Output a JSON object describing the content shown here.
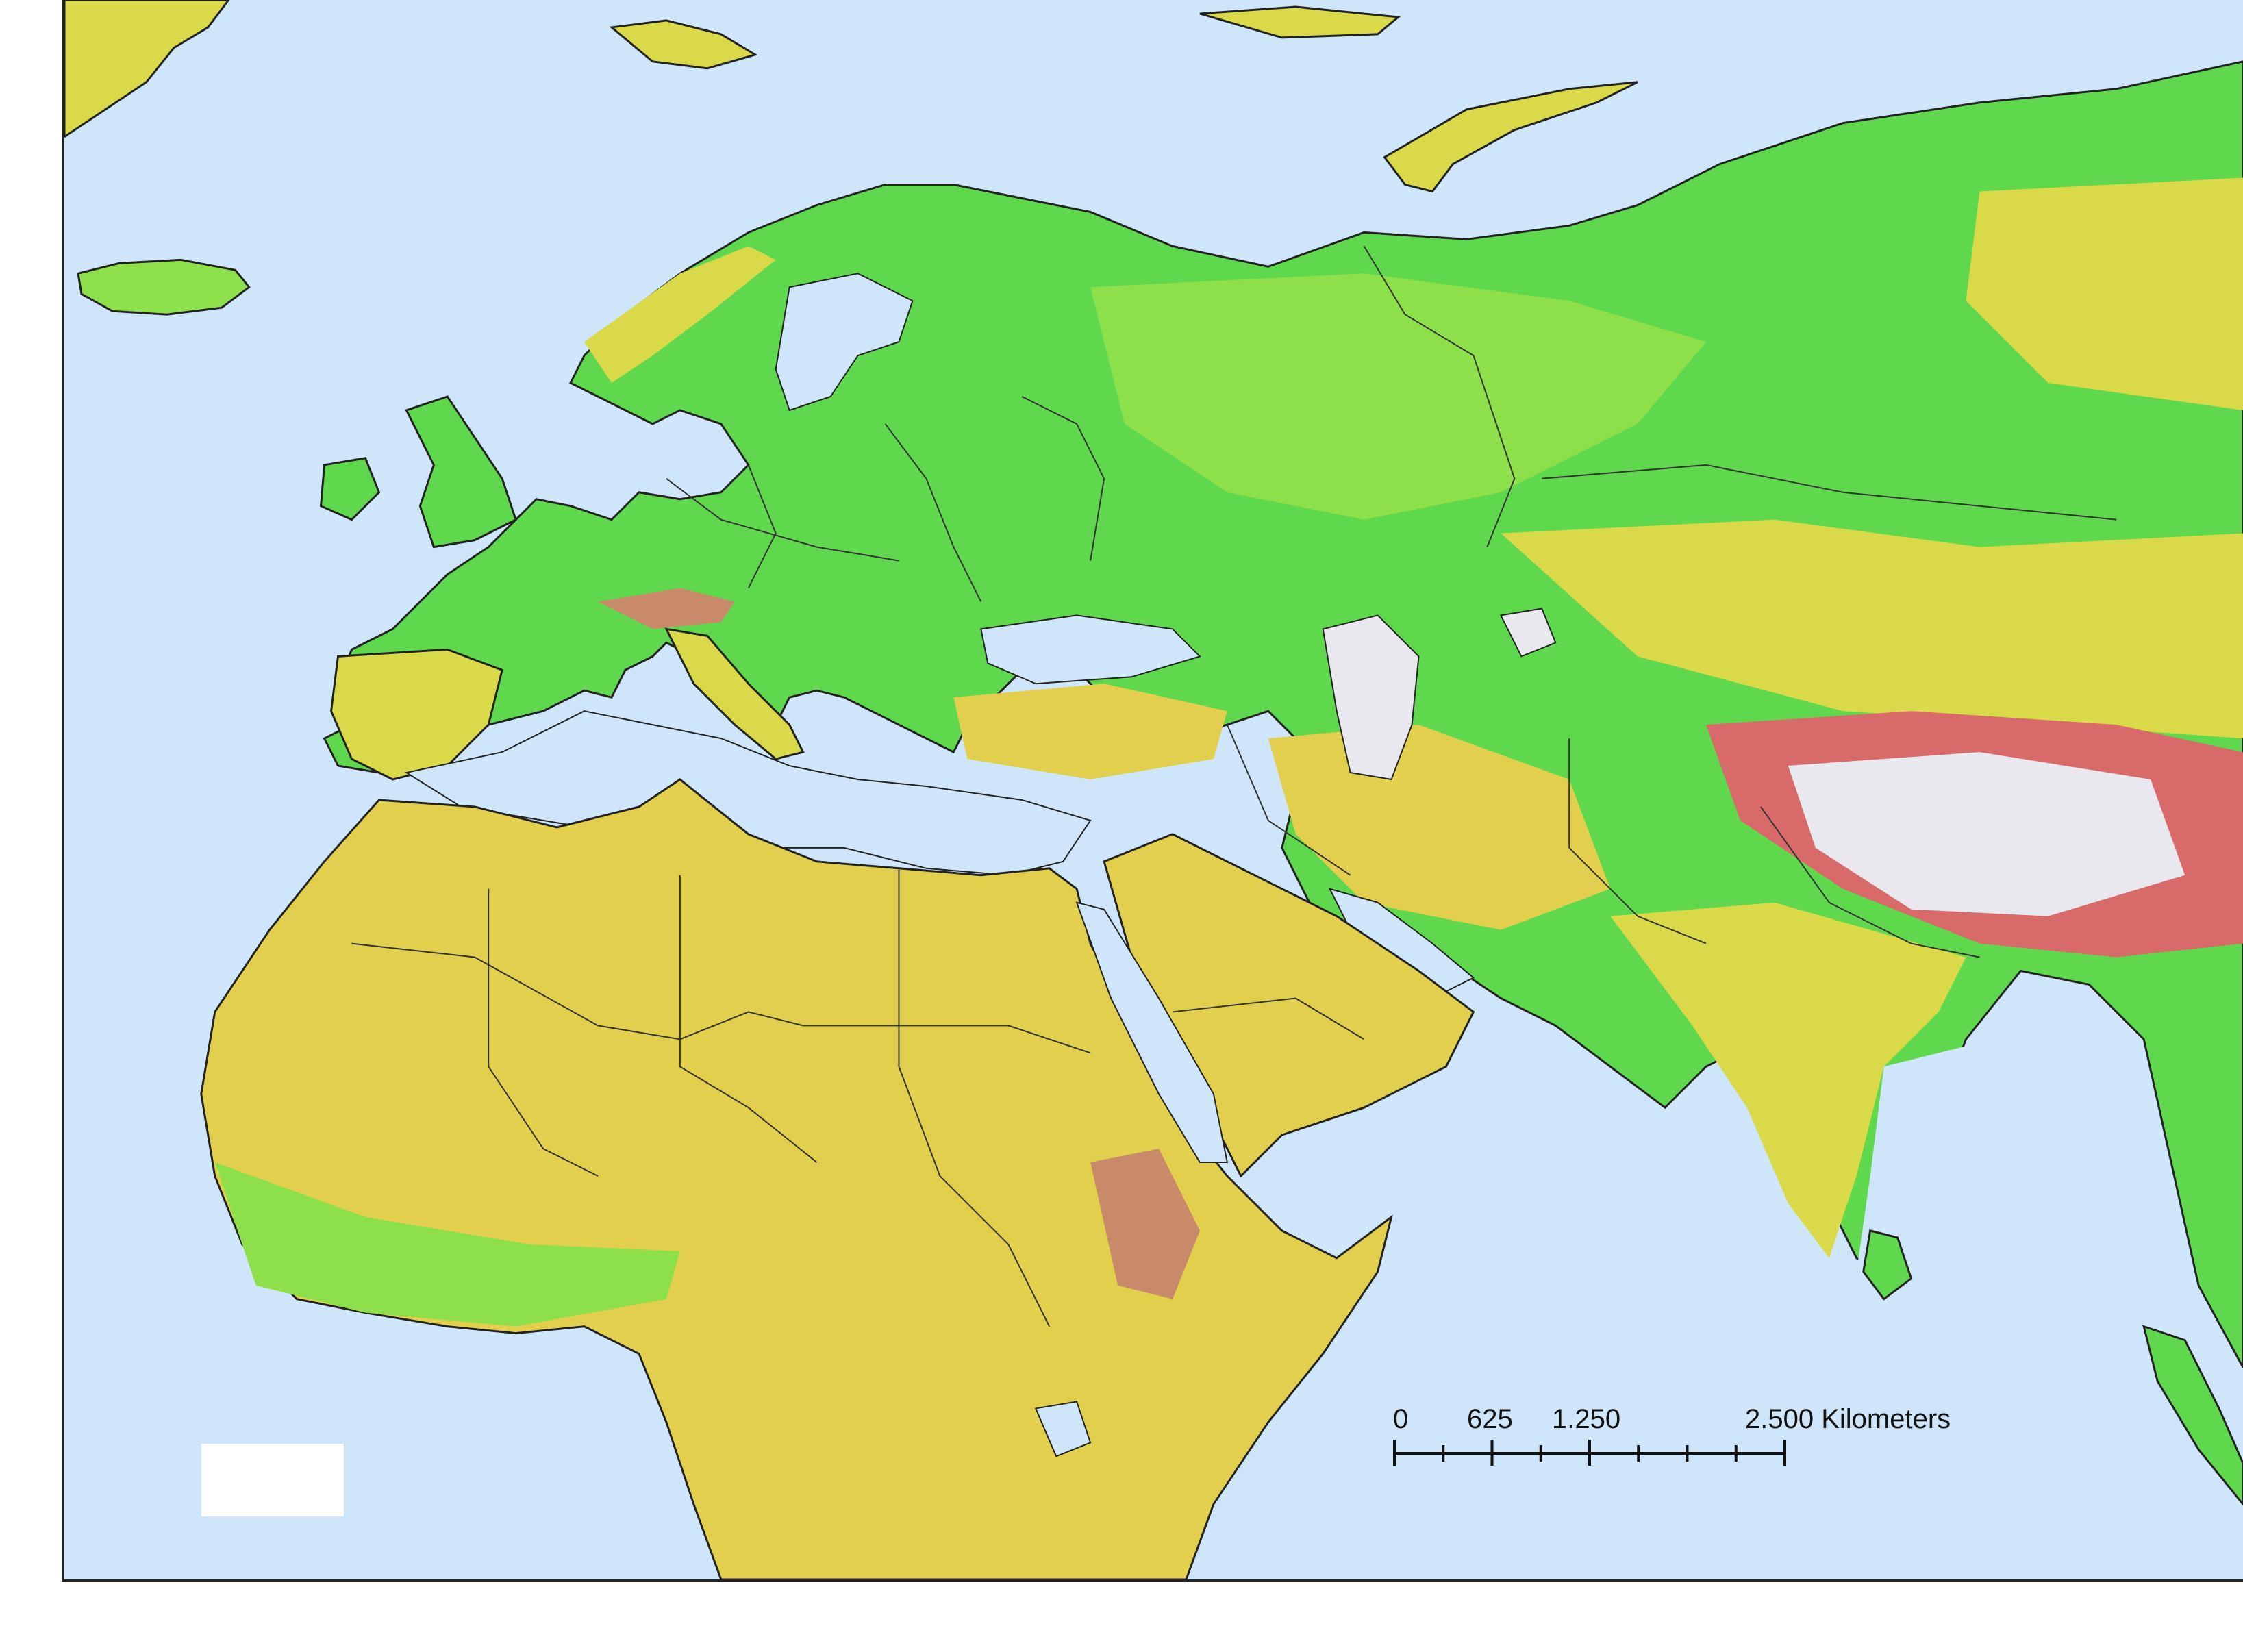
{
  "colors": {
    "ocean": "#cfe6fa",
    "lowland": "#5fd84e",
    "plain": "#8ee04a",
    "upland": "#d9d94a",
    "desert": "#e2cf4e",
    "mountain": "#c98a6a",
    "high": "#d86a6a",
    "ice": "#e8e8ee",
    "border": "#333333",
    "coast": "#222222"
  },
  "scale_bar": {
    "labels": [
      "0",
      "625",
      "1.250",
      "2.500 Kilometers"
    ],
    "label_values_km": [
      0,
      625,
      1250,
      2500
    ]
  }
}
